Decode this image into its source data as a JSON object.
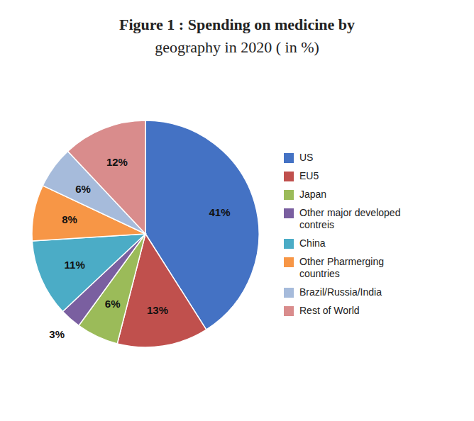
{
  "chart_data": {
    "type": "pie",
    "title": "Figure 1 : Spending on medicine by",
    "subtitle": "geography in 2020  ( in %)",
    "categories": [
      "US",
      "EU5",
      "Japan",
      "Other major developed\ncontreis",
      "China",
      "Other Pharmerging\ncountries",
      "Brazil/Russia/India",
      "Rest of World"
    ],
    "values": [
      41,
      13,
      6,
      3,
      11,
      8,
      6,
      12
    ],
    "value_labels": [
      "41%",
      "13%",
      "6%",
      "3%",
      "11%",
      "8%",
      "6%",
      "12%"
    ],
    "colors": [
      "#4472C4",
      "#C0504D",
      "#9BBB59",
      "#7A5FA0",
      "#4BACC6",
      "#F79646",
      "#A6BBDB",
      "#D98C8C"
    ],
    "data_labels": true,
    "legend": "right"
  }
}
